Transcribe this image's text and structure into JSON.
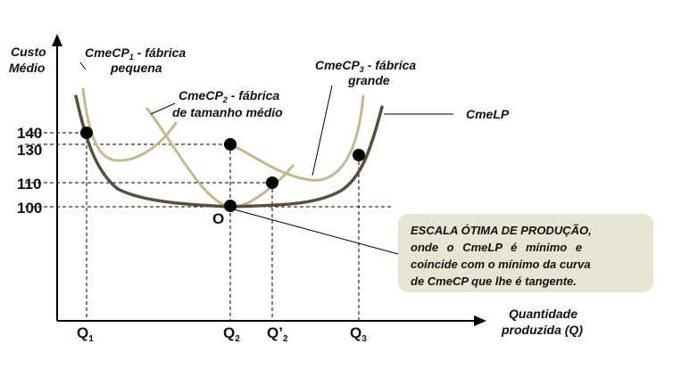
{
  "axes": {
    "y_label_line1": "Custo",
    "y_label_line2": "Médio",
    "x_label_line1": "Quantidade",
    "x_label_line2": "produzida (Q)",
    "y_ticks": [
      "140",
      "130",
      "110",
      "100"
    ],
    "x_ticks": [
      {
        "base": "Q",
        "sub": "1",
        "prime": ""
      },
      {
        "base": "Q",
        "sub": "2",
        "prime": ""
      },
      {
        "base": "Q",
        "sub": "2",
        "prime": "’"
      },
      {
        "base": "Q",
        "sub": "3",
        "prime": ""
      }
    ]
  },
  "curves": {
    "cmecp1_prefix": "CmeCP",
    "cmecp1_sub": "1",
    "cmecp1_suffix": " - fábrica",
    "cmecp1_line2": "pequena",
    "cmecp2_prefix": "CmeCP",
    "cmecp2_sub": "2",
    "cmecp2_suffix": " - fábrica",
    "cmecp2_line2": "de tamanho médio",
    "cmecp3_prefix": "CmeCP",
    "cmecp3_sub": "3",
    "cmecp3_suffix": " - fábrica",
    "cmecp3_line2": "grande",
    "cmelp": "CmeLP"
  },
  "point_label": "O",
  "callout": {
    "line1": "ESCALA ÓTIMA DE PRODUÇÃO,",
    "line2": "onde o CmeLP é mínimo e",
    "line3": "coincide com o mínimo da curva",
    "line4": "de CmeCP que lhe é tangente."
  },
  "colors": {
    "short_run_curve": "#c4b98e",
    "long_run_curve": "#5b4d3c",
    "callout_bg": "#e7e4d3"
  }
}
